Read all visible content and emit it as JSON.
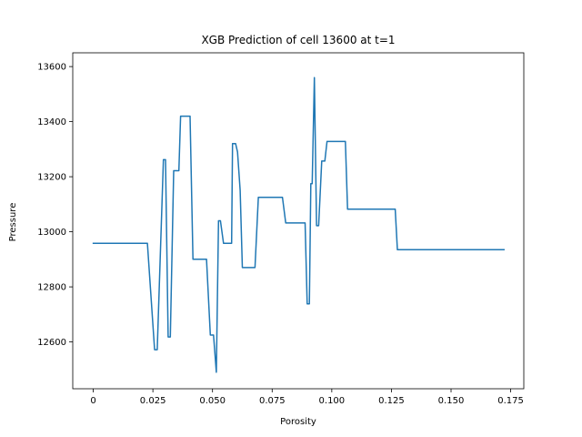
{
  "chart_data": {
    "type": "line",
    "title": "XGB Prediction of cell 13600 at t=1",
    "xlabel": "Porosity",
    "ylabel": "Pressure",
    "xlim": [
      -0.0086,
      0.1805
    ],
    "ylim": [
      12430,
      13650
    ],
    "xticks": [
      0,
      0.025,
      0.05,
      0.075,
      0.1,
      0.125,
      0.15,
      0.175
    ],
    "xtick_labels": [
      "0",
      "0.025",
      "0.050",
      "0.075",
      "0.100",
      "0.125",
      "0.150",
      "0.175"
    ],
    "yticks": [
      12600,
      12800,
      13000,
      13200,
      13400,
      13600
    ],
    "ytick_labels": [
      "12600",
      "12800",
      "13000",
      "13200",
      "13400",
      "13600"
    ],
    "grid": false,
    "series": [
      {
        "color": "#1f77b4",
        "x": [
          0.0,
          0.0214,
          0.0227,
          0.0257,
          0.0268,
          0.0294,
          0.0303,
          0.0314,
          0.0323,
          0.0337,
          0.0359,
          0.0366,
          0.0397,
          0.0406,
          0.0418,
          0.0451,
          0.0475,
          0.0491,
          0.0504,
          0.0516,
          0.0525,
          0.0533,
          0.0546,
          0.0555,
          0.058,
          0.0584,
          0.0597,
          0.0605,
          0.0616,
          0.0625,
          0.0664,
          0.0678,
          0.0692,
          0.0749,
          0.0793,
          0.0807,
          0.0879,
          0.0888,
          0.0897,
          0.0906,
          0.0912,
          0.0918,
          0.0927,
          0.0936,
          0.0945,
          0.0958,
          0.0971,
          0.098,
          0.1019,
          0.1057,
          0.1066,
          0.1084,
          0.1266,
          0.1275,
          0.1722
        ],
        "y": [
          12958,
          12958,
          12958,
          12572,
          12572,
          13262,
          13262,
          12618,
          12618,
          13222,
          13222,
          13420,
          13420,
          13420,
          12900,
          12900,
          12900,
          12625,
          12625,
          12490,
          13040,
          13040,
          12958,
          12958,
          12958,
          13320,
          13320,
          13290,
          13150,
          12870,
          12870,
          12870,
          13125,
          13125,
          13125,
          13032,
          13032,
          13032,
          12738,
          12738,
          13175,
          13175,
          13560,
          13022,
          13022,
          13257,
          13257,
          13328,
          13328,
          13328,
          13082,
          13082,
          13082,
          12935,
          12935
        ]
      }
    ]
  }
}
